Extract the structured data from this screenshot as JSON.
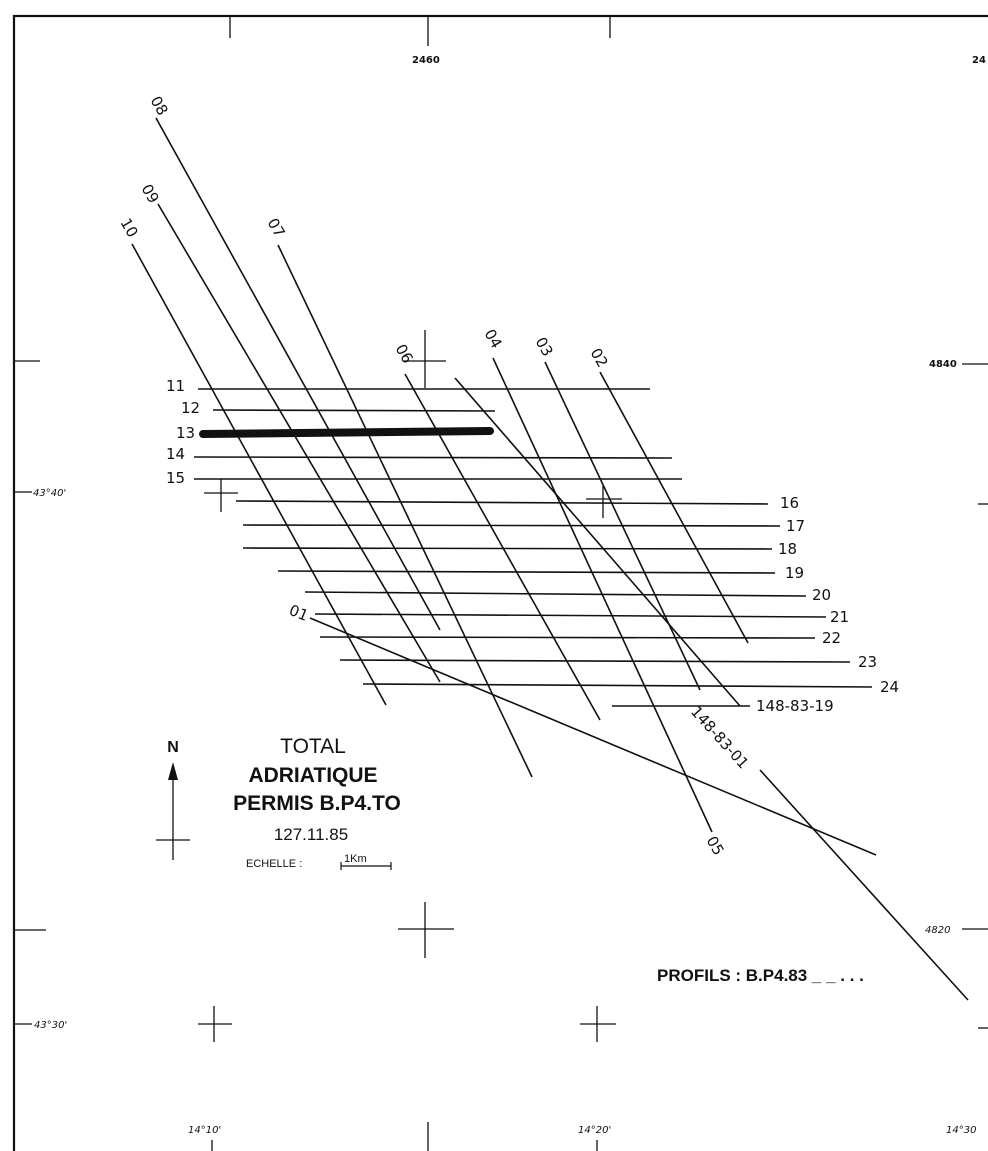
{
  "map": {
    "title_lines": [
      "TOTAL",
      "ADRIATIQUE",
      "PERMIS B.P4.TO"
    ],
    "date": "127.11.85",
    "scale_label": "ECHELLE :",
    "scale_unit": "1Km",
    "north_label": "N",
    "profiles_label": "PROFILS : B.P4.83 _ _ . . .",
    "highlighted_line": "13"
  },
  "coordinates": {
    "easting_top": [
      "2460",
      "24"
    ],
    "northing_right": [
      "4840",
      "4820"
    ],
    "latitude_left": [
      "43°40'",
      "43°30'"
    ],
    "longitude_bottom": [
      "14°10'",
      "14°20'",
      "14°30"
    ]
  },
  "survey_lines": {
    "diagonal_labels": [
      "08",
      "09",
      "10",
      "07",
      "06",
      "04",
      "03",
      "02",
      "01",
      "05"
    ],
    "horizontal_labels_left": [
      "11",
      "12",
      "13",
      "14",
      "15"
    ],
    "horizontal_labels_right": [
      "16",
      "17",
      "18",
      "19",
      "20",
      "21",
      "22",
      "23",
      "24"
    ],
    "extra_line_labels": [
      "148-83-19",
      "148-83-01"
    ]
  }
}
